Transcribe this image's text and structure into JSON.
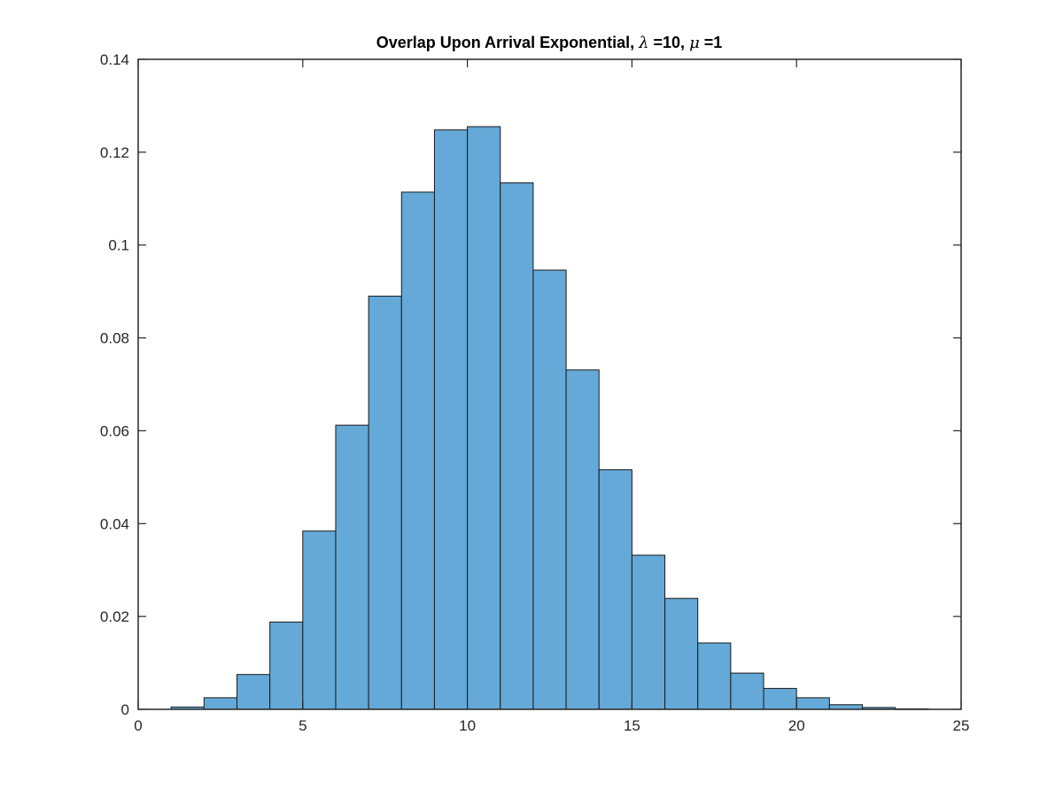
{
  "chart_data": {
    "type": "bar",
    "title": {
      "part1": "Overlap Upon Arrival Exponential, ",
      "lambda_symbol": "λ",
      "part2": " =10, ",
      "mu_symbol": "μ",
      "part3": " =1"
    },
    "xlabel": "",
    "ylabel": "",
    "xlim": [
      0,
      25
    ],
    "ylim": [
      0,
      0.14
    ],
    "xticks": [
      0,
      5,
      10,
      15,
      20,
      25
    ],
    "xtick_labels": [
      "0",
      "5",
      "10",
      "15",
      "20",
      "25"
    ],
    "yticks": [
      0,
      0.02,
      0.04,
      0.06,
      0.08,
      0.1,
      0.12,
      0.14
    ],
    "ytick_labels": [
      "0",
      "0.02",
      "0.04",
      "0.06",
      "0.08",
      "0.1",
      "0.12",
      "0.14"
    ],
    "bin_edges": [
      1,
      2,
      3,
      4,
      5,
      6,
      7,
      8,
      9,
      10,
      11,
      12,
      13,
      14,
      15,
      16,
      17,
      18,
      19,
      20,
      21,
      22,
      23,
      24
    ],
    "values": [
      0.0005,
      0.0025,
      0.0075,
      0.0188,
      0.0384,
      0.0612,
      0.089,
      0.1114,
      0.1248,
      0.1255,
      0.1134,
      0.0946,
      0.0731,
      0.0516,
      0.0332,
      0.0239,
      0.0143,
      0.0078,
      0.0045,
      0.0025,
      0.001,
      0.0004,
      0.0001
    ],
    "bar_color": "#64a9d7",
    "edge_color": "#1a1a1a",
    "grid": false,
    "box": true
  }
}
